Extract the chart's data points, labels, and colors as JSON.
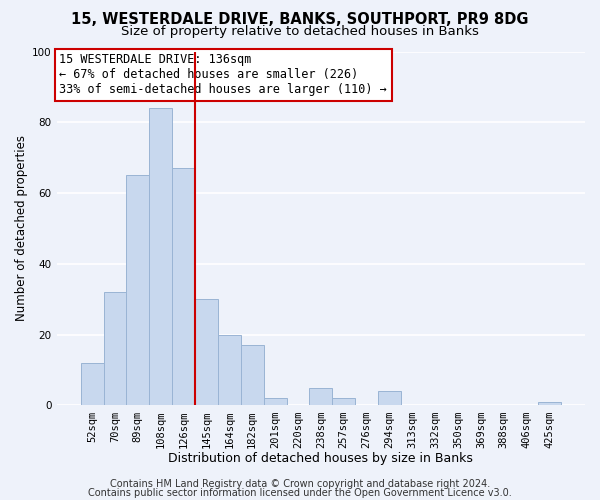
{
  "title1": "15, WESTERDALE DRIVE, BANKS, SOUTHPORT, PR9 8DG",
  "title2": "Size of property relative to detached houses in Banks",
  "xlabel": "Distribution of detached houses by size in Banks",
  "ylabel": "Number of detached properties",
  "bar_labels": [
    "52sqm",
    "70sqm",
    "89sqm",
    "108sqm",
    "126sqm",
    "145sqm",
    "164sqm",
    "182sqm",
    "201sqm",
    "220sqm",
    "238sqm",
    "257sqm",
    "276sqm",
    "294sqm",
    "313sqm",
    "332sqm",
    "350sqm",
    "369sqm",
    "388sqm",
    "406sqm",
    "425sqm"
  ],
  "bar_heights": [
    12,
    32,
    65,
    84,
    67,
    30,
    20,
    17,
    2,
    0,
    5,
    2,
    0,
    4,
    0,
    0,
    0,
    0,
    0,
    0,
    1
  ],
  "bar_color": "#c8d8ee",
  "bar_edge_color": "#9ab4d4",
  "vline_x_index": 4,
  "vline_color": "#cc0000",
  "ylim": [
    0,
    100
  ],
  "annotation_line1": "15 WESTERDALE DRIVE: 136sqm",
  "annotation_line2": "← 67% of detached houses are smaller (226)",
  "annotation_line3": "33% of semi-detached houses are larger (110) →",
  "footer1": "Contains HM Land Registry data © Crown copyright and database right 2024.",
  "footer2": "Contains public sector information licensed under the Open Government Licence v3.0.",
  "background_color": "#eef2fa",
  "grid_color": "#ffffff",
  "title1_fontsize": 10.5,
  "title2_fontsize": 9.5,
  "xlabel_fontsize": 9,
  "ylabel_fontsize": 8.5,
  "tick_fontsize": 7.5,
  "annotation_fontsize": 8.5,
  "footer_fontsize": 7
}
